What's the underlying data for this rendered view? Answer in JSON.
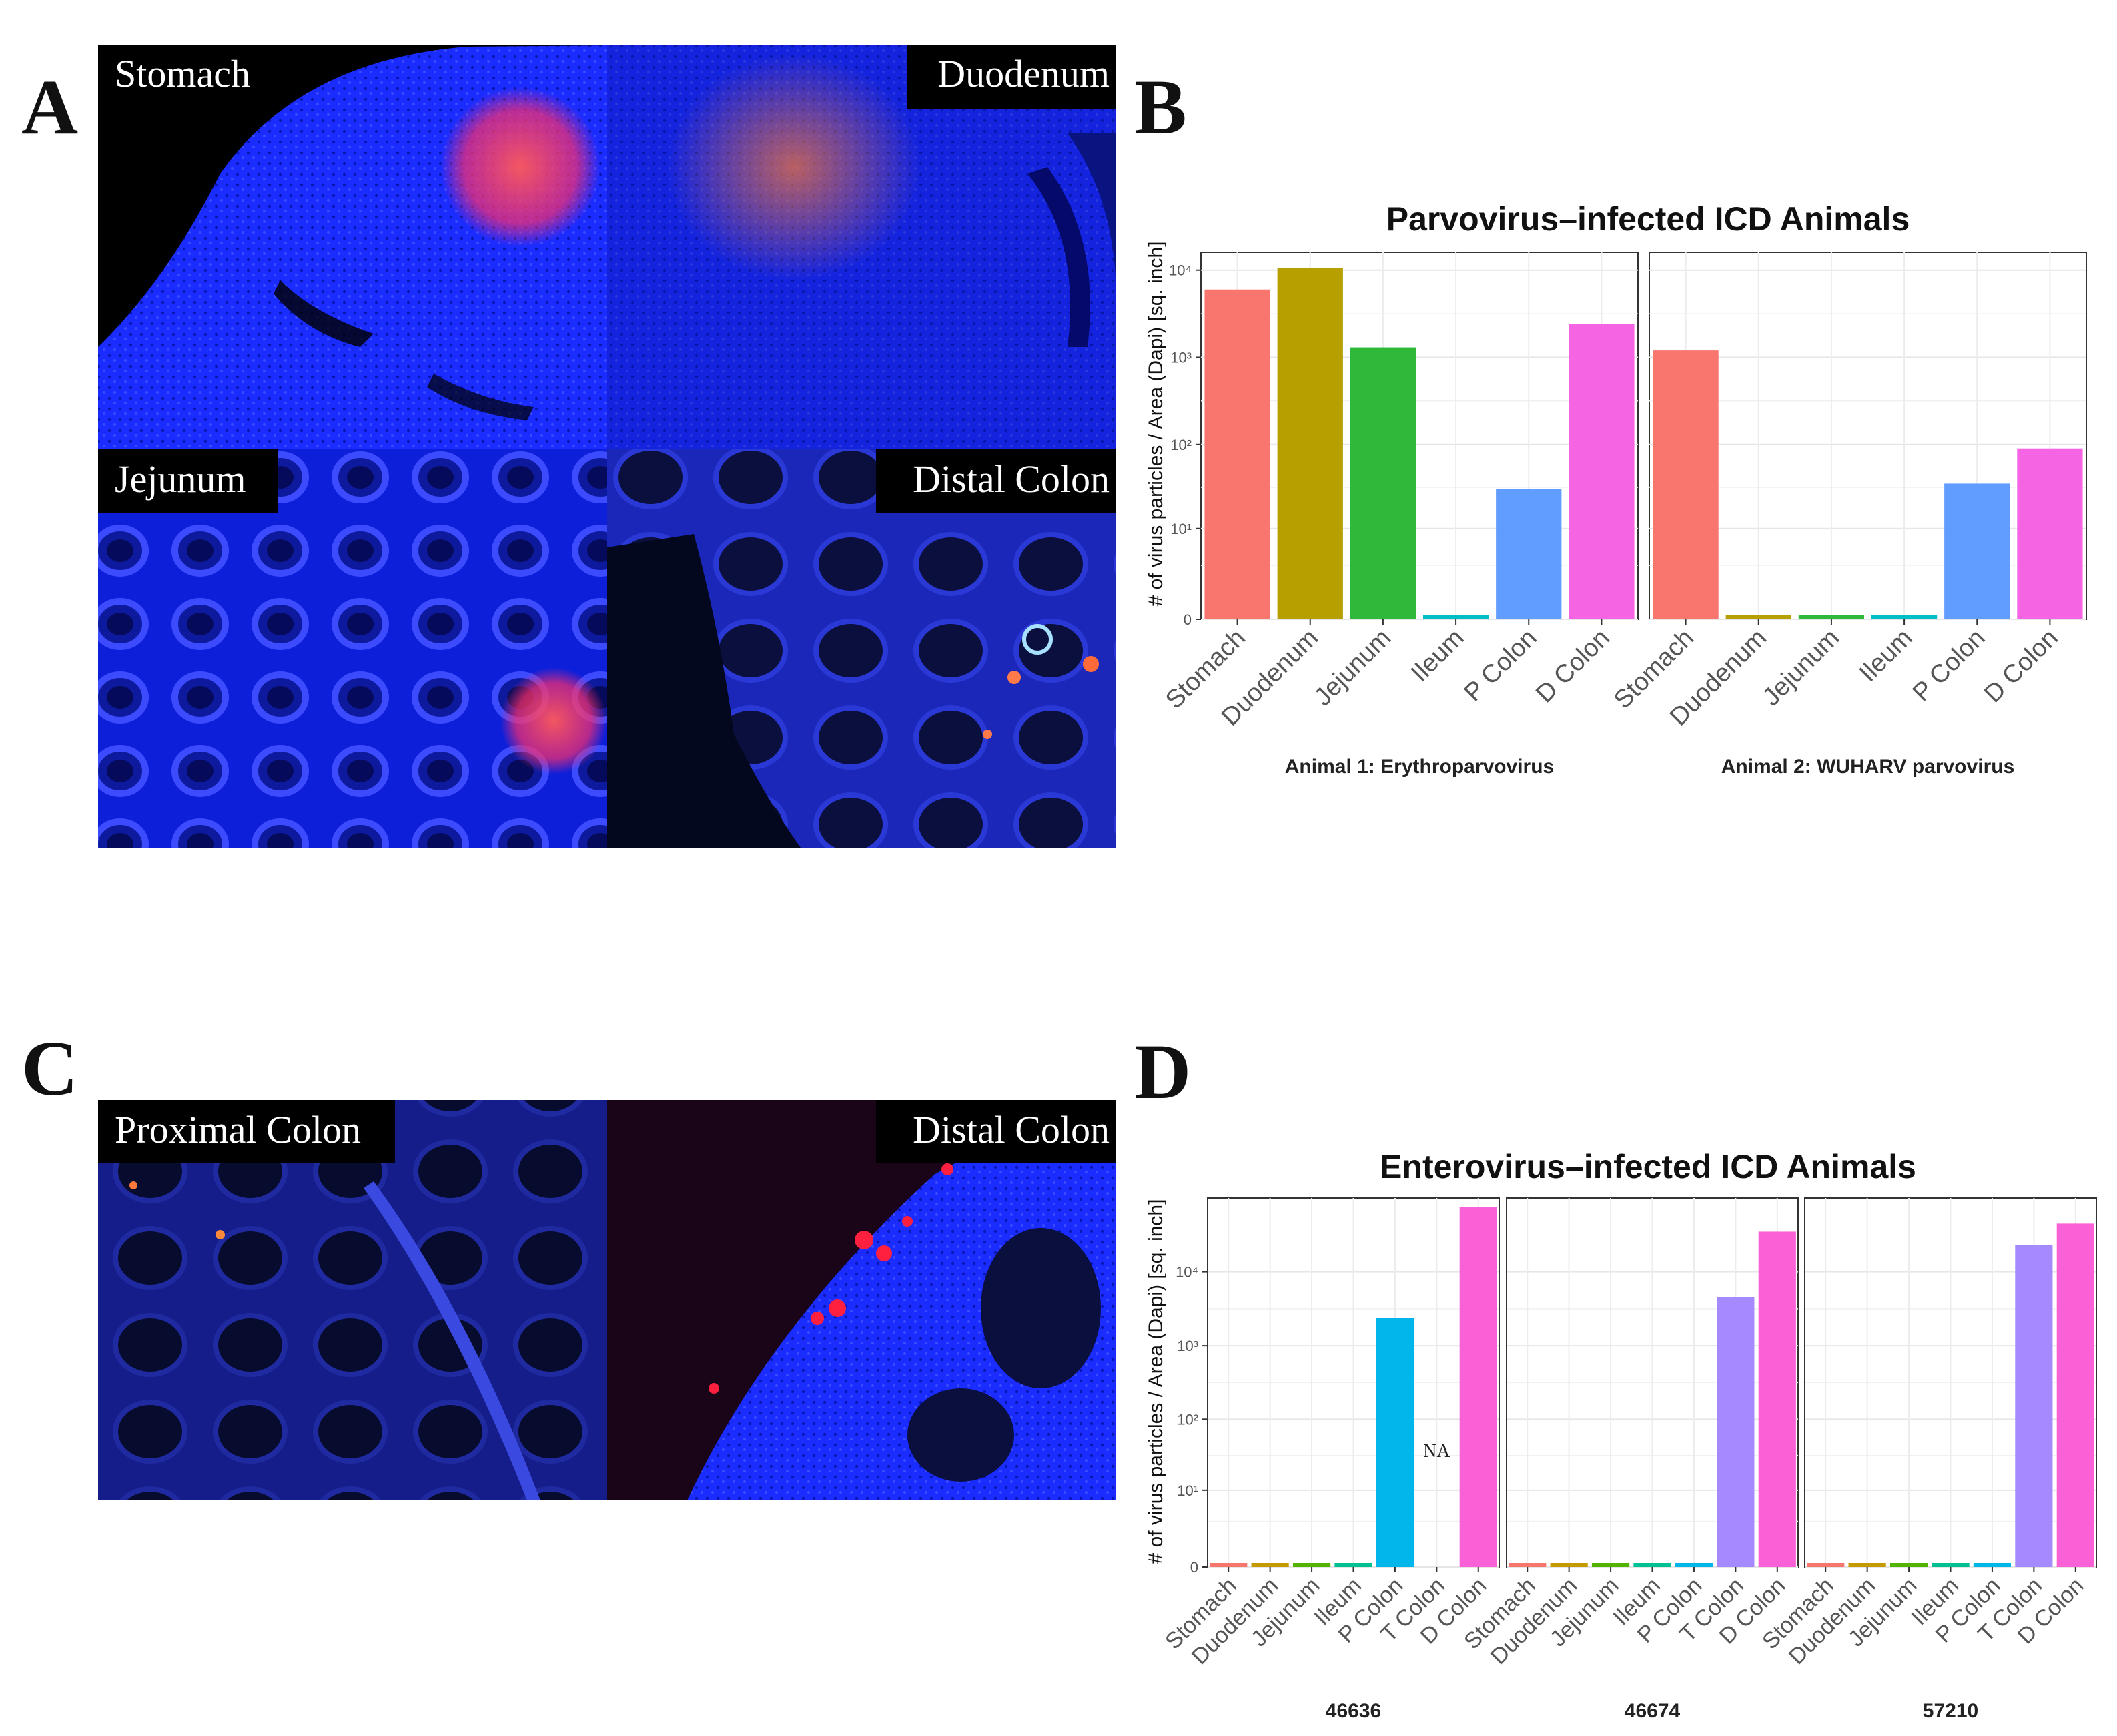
{
  "panels": {
    "A": {
      "letter": "A",
      "tiles": [
        {
          "label": "Stomach"
        },
        {
          "label": "Duodenum"
        },
        {
          "label": "Jejunum"
        },
        {
          "label": "Distal Colon"
        }
      ]
    },
    "C": {
      "letter": "C",
      "tiles": [
        {
          "label": "Proximal Colon"
        },
        {
          "label": "Distal Colon"
        }
      ]
    },
    "B": {
      "letter": "B"
    },
    "D": {
      "letter": "D"
    }
  },
  "colors": {
    "tissue_blue": "#1626ff",
    "tissue_dark": "#050a2a",
    "signal_red": "#ff3b4a",
    "label_bg": "#000000",
    "label_text": "#ffffff"
  },
  "chart_data": [
    {
      "id": "B",
      "type": "bar",
      "title": "Parvovirus–infected ICD Animals",
      "ylabel": "# of virus particles / Area (Dapi) [sq. inch]",
      "yscale": "pseudo-log10",
      "ylim": [
        0,
        16000
      ],
      "yticks": [
        {
          "value": 0,
          "label": "0"
        },
        {
          "value": 10,
          "label": "10¹"
        },
        {
          "value": 100,
          "label": "10²"
        },
        {
          "value": 1000,
          "label": "10³"
        },
        {
          "value": 10000,
          "label": "10⁴"
        }
      ],
      "categories": [
        "Stomach",
        "Duodenum",
        "Jejunum",
        "Ileum",
        "P Colon",
        "D Colon"
      ],
      "category_colors": [
        "#f8766d",
        "#b79f00",
        "#2fb93b",
        "#00bfc4",
        "#619cff",
        "#f564e3"
      ],
      "facets": [
        {
          "strip": "Animal 1: Erythroparvovirus",
          "values": [
            6000,
            10500,
            1300,
            0,
            30,
            2400
          ],
          "na": []
        },
        {
          "strip": "Animal 2: WUHARV parvovirus",
          "values": [
            1200,
            0,
            0,
            0,
            35,
            90
          ],
          "na": []
        }
      ]
    },
    {
      "id": "D",
      "type": "bar",
      "title": "Enterovirus–infected ICD Animals",
      "ylabel": "# of virus particles / Area (Dapi) [sq. inch]",
      "yscale": "pseudo-log10",
      "ylim": [
        0,
        100000
      ],
      "yticks": [
        {
          "value": 0,
          "label": "0"
        },
        {
          "value": 10,
          "label": "10¹"
        },
        {
          "value": 100,
          "label": "10²"
        },
        {
          "value": 1000,
          "label": "10³"
        },
        {
          "value": 10000,
          "label": "10⁴"
        }
      ],
      "categories": [
        "Stomach",
        "Duodenum",
        "Jejunum",
        "Ileum",
        "P Colon",
        "T Colon",
        "D Colon"
      ],
      "category_colors": [
        "#f8766d",
        "#c49a00",
        "#53b400",
        "#00c094",
        "#00b6eb",
        "#a58aff",
        "#fb61d7"
      ],
      "na_label": "NA",
      "facets": [
        {
          "strip": "46636",
          "values": [
            0,
            0,
            0,
            0,
            2400,
            null,
            75000
          ],
          "na": [
            5
          ]
        },
        {
          "strip": "46674",
          "values": [
            0,
            0,
            0,
            0,
            0,
            4500,
            35000
          ],
          "na": []
        },
        {
          "strip": "57210",
          "values": [
            0,
            0,
            0,
            0,
            0,
            23000,
            45000
          ],
          "na": []
        }
      ]
    }
  ]
}
